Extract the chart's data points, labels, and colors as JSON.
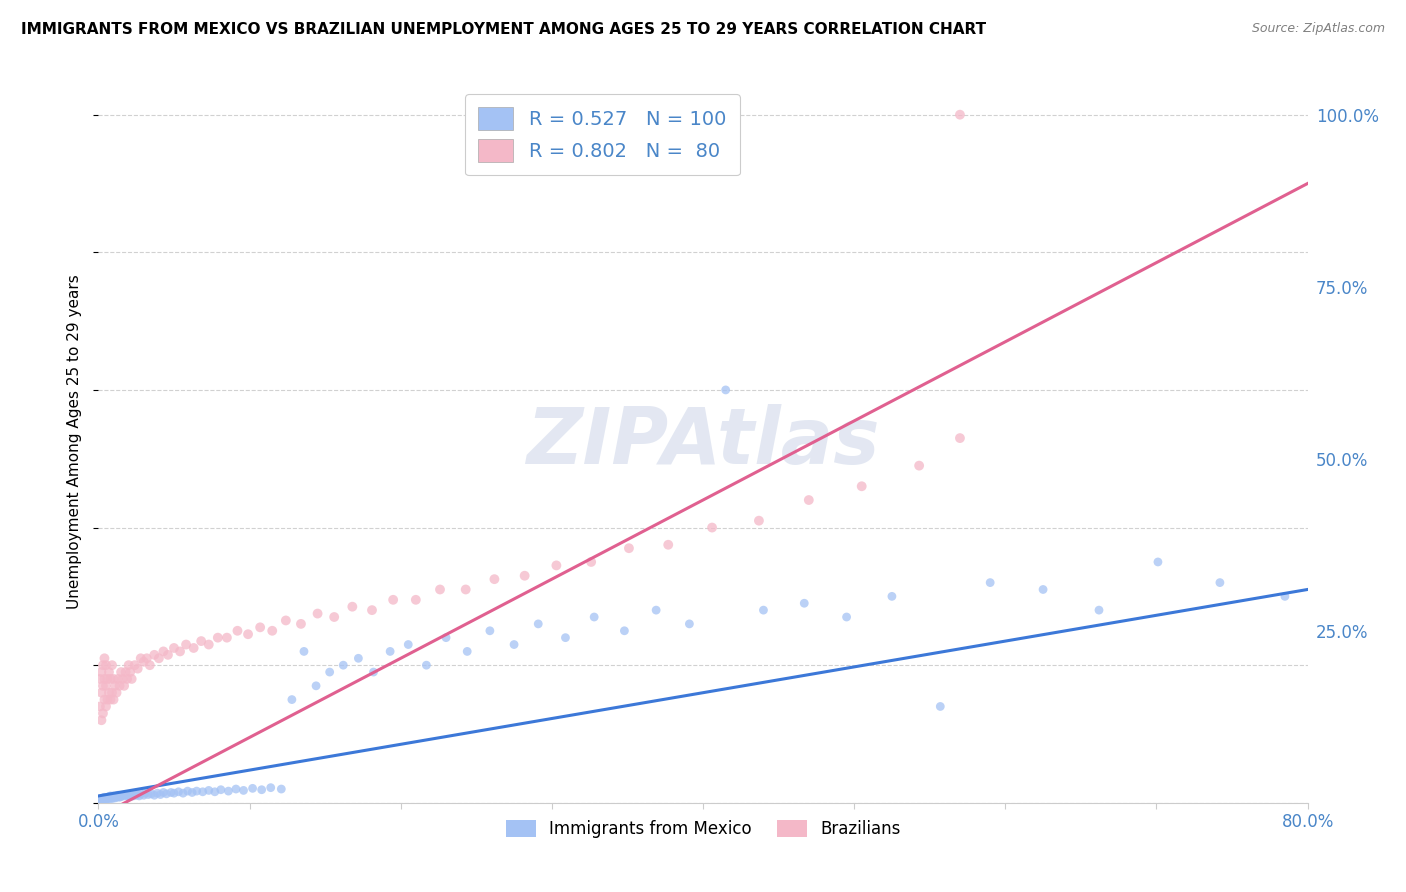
{
  "title": "IMMIGRANTS FROM MEXICO VS BRAZILIAN UNEMPLOYMENT AMONG AGES 25 TO 29 YEARS CORRELATION CHART",
  "source": "Source: ZipAtlas.com",
  "ylabel": "Unemployment Among Ages 25 to 29 years",
  "xlim": [
    0.0,
    0.8
  ],
  "ylim": [
    0.0,
    1.05
  ],
  "watermark": "ZIPAtlas",
  "background_color": "#ffffff",
  "grid_color": "#cccccc",
  "title_fontsize": 11,
  "axis_label_color": "#4a86c8",
  "scatter_size_mexico": 40,
  "scatter_size_brazil": 50,
  "mexico_scatter_color": "#a4c2f4",
  "mexico_line_color": "#3c78d8",
  "brazil_scatter_color": "#f4b8c8",
  "brazil_line_color": "#e06090",
  "mexico_R": 0.527,
  "mexico_N": 100,
  "brazil_R": 0.802,
  "brazil_N": 80,
  "mexico_x": [
    0.001,
    0.002,
    0.002,
    0.003,
    0.003,
    0.004,
    0.004,
    0.005,
    0.005,
    0.006,
    0.006,
    0.007,
    0.007,
    0.008,
    0.008,
    0.009,
    0.009,
    0.01,
    0.01,
    0.011,
    0.011,
    0.012,
    0.012,
    0.013,
    0.013,
    0.014,
    0.015,
    0.015,
    0.016,
    0.017,
    0.018,
    0.019,
    0.02,
    0.021,
    0.022,
    0.023,
    0.024,
    0.025,
    0.026,
    0.027,
    0.028,
    0.03,
    0.031,
    0.033,
    0.035,
    0.037,
    0.039,
    0.041,
    0.043,
    0.045,
    0.048,
    0.05,
    0.053,
    0.056,
    0.059,
    0.062,
    0.065,
    0.069,
    0.073,
    0.077,
    0.081,
    0.086,
    0.091,
    0.096,
    0.102,
    0.108,
    0.114,
    0.121,
    0.128,
    0.136,
    0.144,
    0.153,
    0.162,
    0.172,
    0.182,
    0.193,
    0.205,
    0.217,
    0.23,
    0.244,
    0.259,
    0.275,
    0.291,
    0.309,
    0.328,
    0.348,
    0.369,
    0.391,
    0.415,
    0.44,
    0.467,
    0.495,
    0.525,
    0.557,
    0.59,
    0.625,
    0.662,
    0.701,
    0.742,
    0.785
  ],
  "mexico_y": [
    0.005,
    0.006,
    0.004,
    0.007,
    0.005,
    0.006,
    0.008,
    0.005,
    0.007,
    0.006,
    0.008,
    0.006,
    0.009,
    0.007,
    0.01,
    0.006,
    0.009,
    0.008,
    0.01,
    0.007,
    0.009,
    0.008,
    0.01,
    0.009,
    0.011,
    0.008,
    0.01,
    0.009,
    0.011,
    0.01,
    0.012,
    0.01,
    0.011,
    0.009,
    0.012,
    0.01,
    0.013,
    0.011,
    0.012,
    0.01,
    0.013,
    0.011,
    0.014,
    0.012,
    0.013,
    0.011,
    0.014,
    0.012,
    0.015,
    0.013,
    0.015,
    0.014,
    0.016,
    0.014,
    0.017,
    0.015,
    0.017,
    0.016,
    0.018,
    0.016,
    0.019,
    0.017,
    0.02,
    0.018,
    0.021,
    0.019,
    0.022,
    0.02,
    0.15,
    0.22,
    0.17,
    0.19,
    0.2,
    0.21,
    0.19,
    0.22,
    0.23,
    0.2,
    0.24,
    0.22,
    0.25,
    0.23,
    0.26,
    0.24,
    0.27,
    0.25,
    0.28,
    0.26,
    0.6,
    0.28,
    0.29,
    0.27,
    0.3,
    0.14,
    0.32,
    0.31,
    0.28,
    0.35,
    0.32,
    0.3
  ],
  "brazil_x": [
    0.001,
    0.001,
    0.002,
    0.002,
    0.002,
    0.003,
    0.003,
    0.003,
    0.004,
    0.004,
    0.004,
    0.005,
    0.005,
    0.005,
    0.006,
    0.006,
    0.007,
    0.007,
    0.008,
    0.008,
    0.009,
    0.009,
    0.01,
    0.01,
    0.011,
    0.012,
    0.013,
    0.014,
    0.015,
    0.016,
    0.017,
    0.018,
    0.019,
    0.02,
    0.021,
    0.022,
    0.024,
    0.026,
    0.028,
    0.03,
    0.032,
    0.034,
    0.037,
    0.04,
    0.043,
    0.046,
    0.05,
    0.054,
    0.058,
    0.063,
    0.068,
    0.073,
    0.079,
    0.085,
    0.092,
    0.099,
    0.107,
    0.115,
    0.124,
    0.134,
    0.145,
    0.156,
    0.168,
    0.181,
    0.195,
    0.21,
    0.226,
    0.243,
    0.262,
    0.282,
    0.303,
    0.326,
    0.351,
    0.377,
    0.406,
    0.437,
    0.47,
    0.505,
    0.543,
    0.57
  ],
  "brazil_y": [
    0.14,
    0.18,
    0.12,
    0.16,
    0.19,
    0.13,
    0.17,
    0.2,
    0.15,
    0.18,
    0.21,
    0.14,
    0.17,
    0.2,
    0.15,
    0.18,
    0.16,
    0.19,
    0.15,
    0.18,
    0.16,
    0.2,
    0.15,
    0.18,
    0.17,
    0.16,
    0.18,
    0.17,
    0.19,
    0.18,
    0.17,
    0.19,
    0.18,
    0.2,
    0.19,
    0.18,
    0.2,
    0.195,
    0.21,
    0.205,
    0.21,
    0.2,
    0.215,
    0.21,
    0.22,
    0.215,
    0.225,
    0.22,
    0.23,
    0.225,
    0.235,
    0.23,
    0.24,
    0.24,
    0.25,
    0.245,
    0.255,
    0.25,
    0.265,
    0.26,
    0.275,
    0.27,
    0.285,
    0.28,
    0.295,
    0.295,
    0.31,
    0.31,
    0.325,
    0.33,
    0.345,
    0.35,
    0.37,
    0.375,
    0.4,
    0.41,
    0.44,
    0.46,
    0.49,
    0.53
  ],
  "brazil_outlier_x": [
    0.57
  ],
  "brazil_outlier_y": [
    1.0
  ]
}
